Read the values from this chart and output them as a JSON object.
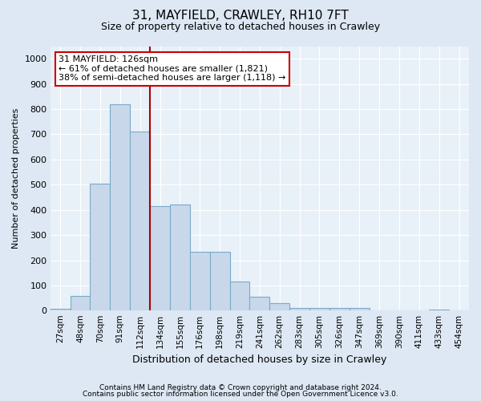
{
  "title1": "31, MAYFIELD, CRAWLEY, RH10 7FT",
  "title2": "Size of property relative to detached houses in Crawley",
  "xlabel": "Distribution of detached houses by size in Crawley",
  "ylabel": "Number of detached properties",
  "bar_labels": [
    "27sqm",
    "48sqm",
    "70sqm",
    "91sqm",
    "112sqm",
    "134sqm",
    "155sqm",
    "176sqm",
    "198sqm",
    "219sqm",
    "241sqm",
    "262sqm",
    "283sqm",
    "305sqm",
    "326sqm",
    "347sqm",
    "369sqm",
    "390sqm",
    "411sqm",
    "433sqm",
    "454sqm"
  ],
  "bar_values": [
    8,
    60,
    505,
    820,
    710,
    415,
    420,
    235,
    235,
    115,
    55,
    30,
    12,
    12,
    10,
    10,
    2,
    0,
    0,
    5,
    0
  ],
  "bar_color": "#c8d8ea",
  "bar_edge_color": "#7aaac8",
  "vline_color": "#aa0000",
  "annotation_text": "31 MAYFIELD: 126sqm\n← 61% of detached houses are smaller (1,821)\n38% of semi-detached houses are larger (1,118) →",
  "annotation_box_color": "white",
  "annotation_box_edge": "#cc0000",
  "ylim": [
    0,
    1050
  ],
  "yticks": [
    0,
    100,
    200,
    300,
    400,
    500,
    600,
    700,
    800,
    900,
    1000
  ],
  "footer1": "Contains HM Land Registry data © Crown copyright and database right 2024.",
  "footer2": "Contains public sector information licensed under the Open Government Licence v3.0.",
  "bg_color": "#dde8f4",
  "plot_bg_color": "#e8f0f8",
  "grid_color": "#c0cfe0"
}
